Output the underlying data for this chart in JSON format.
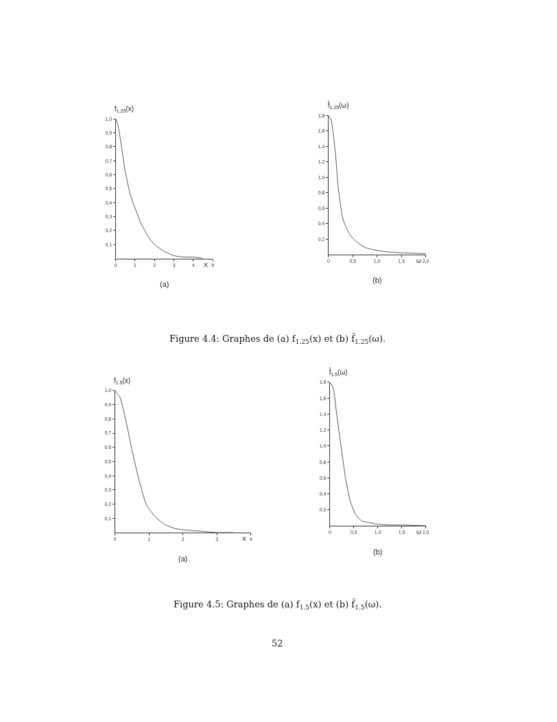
{
  "chart_data": [
    {
      "type": "line",
      "ylabel": "f$_{1.25}$(x)",
      "xlabel": "X",
      "annotations": [
        "(a)"
      ],
      "x": [
        0,
        0.1,
        0.25,
        0.5,
        0.75,
        1,
        1.25,
        1.5,
        1.75,
        2,
        2.5,
        3,
        3.5,
        4,
        4.5
      ],
      "series": [
        {
          "color": "#555555",
          "values": [
            1.0,
            0.97,
            0.85,
            0.62,
            0.46,
            0.36,
            0.27,
            0.2,
            0.14,
            0.1,
            0.05,
            0.02,
            0.01,
            0.01,
            0
          ]
        }
      ],
      "xlim": [
        0,
        5
      ],
      "xticks": [
        0,
        1,
        2,
        3,
        4,
        5
      ],
      "ylim": [
        0,
        1.0
      ],
      "yticks": [
        {
          "value": 0.1,
          "label": "0,1"
        },
        {
          "value": 0.2,
          "label": "0,2"
        },
        {
          "value": 0.3,
          "label": "0,3"
        },
        {
          "value": 0.4,
          "label": "0,4"
        },
        {
          "value": 0.5,
          "label": "0,5"
        },
        {
          "value": 0.6,
          "label": "0,6"
        },
        {
          "value": 0.7,
          "label": "0,7"
        },
        {
          "value": 0.8,
          "label": "0,8"
        },
        {
          "value": 0.9,
          "label": "0,9"
        },
        {
          "value": 1.0,
          "label": "1,0"
        }
      ],
      "marker": "none",
      "line_style": "solid"
    },
    {
      "type": "line",
      "ylabel": "f̂$_{1.25}$(ω)",
      "xlabel": "ω",
      "annotations": [
        "(b)",
        "Figure 4.4: Graphes de (a) f$_{1.25}$(x) et (b) f̂$_{1.25}$(ω)."
      ],
      "x": [
        0,
        0.05,
        0.1,
        0.15,
        0.2,
        0.25,
        0.3,
        0.4,
        0.5,
        0.6,
        0.75,
        1.0,
        1.25,
        1.5,
        2.0
      ],
      "series": [
        {
          "color": "#555555",
          "values": [
            1.8,
            1.75,
            1.56,
            1.26,
            0.87,
            0.63,
            0.45,
            0.3,
            0.21,
            0.15,
            0.09,
            0.05,
            0.03,
            0.02,
            0.01
          ]
        }
      ],
      "xlim": [
        0,
        2.0
      ],
      "xticks": [
        0,
        {
          "value": 0.5,
          "label": "0,5"
        },
        {
          "value": 1.0,
          "label": "1,0"
        },
        {
          "value": 1.5,
          "label": "1,5"
        },
        {
          "value": 2.0,
          "label": "2,0"
        }
      ],
      "ylim": [
        0,
        1.8
      ],
      "yticks": [
        {
          "value": 0.2,
          "label": "0,2"
        },
        {
          "value": 0.4,
          "label": "0,4"
        },
        {
          "value": 0.6,
          "label": "0,6"
        },
        {
          "value": 0.8,
          "label": "0,8"
        },
        {
          "value": 1.0,
          "label": "1,0"
        },
        {
          "value": 1.2,
          "label": "1,2"
        },
        {
          "value": 1.4,
          "label": "1,4"
        },
        {
          "value": 1.6,
          "label": "1,6"
        },
        {
          "value": 1.8,
          "label": "1,8"
        }
      ],
      "marker": "none",
      "line_style": "solid"
    },
    {
      "type": "line",
      "ylabel": "f$_{1.5}$(x)",
      "xlabel": "X",
      "annotations": [
        "(a)"
      ],
      "x": [
        0,
        0.15,
        0.32,
        0.52,
        0.72,
        0.92,
        1.19,
        1.45,
        1.75,
        2,
        2.5,
        3,
        3.5
      ],
      "series": [
        {
          "color": "#555555",
          "values": [
            1.0,
            0.95,
            0.79,
            0.56,
            0.36,
            0.2,
            0.11,
            0.06,
            0.03,
            0.02,
            0.01,
            0,
            0
          ]
        }
      ],
      "xlim": [
        0,
        4
      ],
      "xticks": [
        0,
        1,
        2,
        3,
        4
      ],
      "ylim": [
        0,
        1.0
      ],
      "yticks": [
        {
          "value": 0.1,
          "label": "0,1"
        },
        {
          "value": 0.2,
          "label": "0,2"
        },
        {
          "value": 0.3,
          "label": "0,3"
        },
        {
          "value": 0.4,
          "label": "0,4"
        },
        {
          "value": 0.5,
          "label": "0,5"
        },
        {
          "value": 0.6,
          "label": "0,6"
        },
        {
          "value": 0.7,
          "label": "0,7"
        },
        {
          "value": 0.8,
          "label": "0,8"
        },
        {
          "value": 0.9,
          "label": "0,9"
        },
        {
          "value": 1.0,
          "label": "1,0"
        }
      ],
      "marker": "none",
      "line_style": "solid"
    },
    {
      "type": "line",
      "ylabel": "f̂$_{1.5}$(ω)",
      "xlabel": "ω",
      "annotations": [
        "(b)",
        "Figure 4.5: Graphes de (a) f$_{1.5}$(x) et (b) f̂$_{1.5}$(ω).",
        "52"
      ],
      "x": [
        0,
        0.07,
        0.14,
        0.24,
        0.33,
        0.43,
        0.55,
        0.67,
        0.81,
        1.0,
        1.25,
        1.5,
        2.0
      ],
      "series": [
        {
          "color": "#555555",
          "values": [
            1.8,
            1.73,
            1.41,
            0.97,
            0.59,
            0.3,
            0.13,
            0.06,
            0.04,
            0.02,
            0.01,
            0.01,
            0
          ]
        }
      ],
      "xlim": [
        0,
        2.0
      ],
      "xticks": [
        0,
        {
          "value": 0.5,
          "label": "0,5"
        },
        {
          "value": 1.0,
          "label": "1,0"
        },
        {
          "value": 1.5,
          "label": "1,5"
        },
        {
          "value": 2.0,
          "label": "2,0"
        }
      ],
      "ylim": [
        0,
        1.8
      ],
      "yticks": [
        {
          "value": 0.2,
          "label": "0,2"
        },
        {
          "value": 0.4,
          "label": "0,4"
        },
        {
          "value": 0.6,
          "label": "0,6"
        },
        {
          "value": 0.8,
          "label": "0,8"
        },
        {
          "value": 1.0,
          "label": "1,0"
        },
        {
          "value": 1.2,
          "label": "1,2"
        },
        {
          "value": 1.4,
          "label": "1,4"
        },
        {
          "value": 1.6,
          "label": "1,6"
        },
        {
          "value": 1.8,
          "label": "1,8"
        }
      ],
      "marker": "none",
      "line_style": "solid"
    }
  ]
}
